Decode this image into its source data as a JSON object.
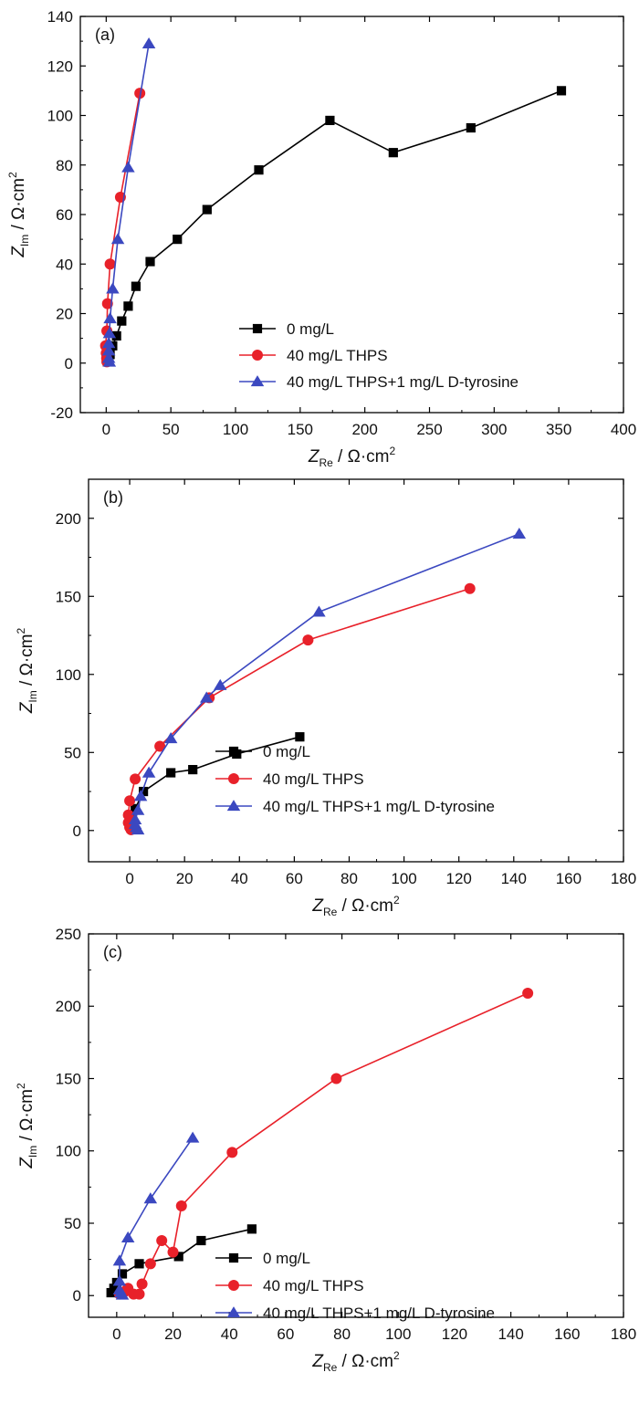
{
  "chart_data": [
    {
      "type": "line",
      "panel_label": "(a)",
      "xlabel": "Z_Re / Ω·cm²",
      "ylabel": "Z_Im / Ω·cm²",
      "xlim": [
        -20,
        400
      ],
      "ylim": [
        -20,
        140
      ],
      "xticks": [
        0,
        50,
        100,
        150,
        200,
        250,
        300,
        350,
        400
      ],
      "yticks": [
        -20,
        0,
        20,
        40,
        60,
        80,
        100,
        120,
        140
      ],
      "legend_position": "bottom-right",
      "series": [
        {
          "name": "0 mg/L",
          "color": "#000000",
          "marker": "square",
          "x": [
            1,
            2,
            3,
            5,
            8,
            12,
            17,
            23,
            34,
            55,
            78,
            118,
            173,
            222,
            282,
            352
          ],
          "y": [
            0.5,
            2,
            3.5,
            7,
            11,
            17,
            23,
            31,
            41,
            50,
            62,
            78,
            98,
            85,
            95,
            110
          ]
        },
        {
          "name": "40 mg/L THPS",
          "color": "#e8212a",
          "marker": "circle",
          "x": [
            0.5,
            0.3,
            0,
            -0.5,
            0.5,
            1,
            3,
            11,
            26
          ],
          "y": [
            0.5,
            2,
            4,
            7,
            13,
            24,
            40,
            67,
            109
          ]
        },
        {
          "name": "40 mg/L THPS+1 mg/L D-tyrosine",
          "color": "#3b48c0",
          "marker": "triangle",
          "x": [
            2.5,
            2,
            2,
            2,
            2.5,
            3,
            5,
            9,
            17,
            33
          ],
          "y": [
            0.5,
            2,
            5,
            8,
            12,
            18,
            30,
            50,
            79,
            129
          ]
        }
      ]
    },
    {
      "type": "line",
      "panel_label": "(b)",
      "xlabel": "Z_Re / Ω·cm²",
      "ylabel": "Z_Im / Ω·cm²",
      "xlim": [
        -15,
        180
      ],
      "ylim": [
        -20,
        225
      ],
      "xticks": [
        0,
        20,
        40,
        60,
        80,
        100,
        120,
        140,
        160,
        180
      ],
      "yticks": [
        0,
        50,
        100,
        150,
        200
      ],
      "legend_position": "bottom-right",
      "series": [
        {
          "name": "0 mg/L",
          "color": "#000000",
          "marker": "square",
          "x": [
            0.5,
            1,
            2,
            5,
            15,
            23,
            39,
            62
          ],
          "y": [
            3,
            8,
            14,
            25,
            37,
            39,
            49,
            60
          ]
        },
        {
          "name": "40 mg/L THPS",
          "color": "#e8212a",
          "marker": "circle",
          "x": [
            0.5,
            0,
            -0.5,
            -0.5,
            0,
            2,
            11,
            29,
            65,
            124
          ],
          "y": [
            0.5,
            2,
            5,
            10,
            19,
            33,
            54,
            85,
            122,
            155
          ]
        },
        {
          "name": "40 mg/L THPS+1 mg/L D-tyrosine",
          "color": "#3b48c0",
          "marker": "triangle",
          "x": [
            3,
            2.5,
            2,
            2,
            3,
            4,
            7,
            15,
            28,
            33,
            69,
            142
          ],
          "y": [
            0.5,
            2,
            4,
            7,
            13,
            22,
            37,
            59,
            85,
            93,
            140,
            190
          ]
        }
      ]
    },
    {
      "type": "line",
      "panel_label": "(c)",
      "xlabel": "Z_Re / Ω·cm²",
      "ylabel": "Z_Im / Ω·cm²",
      "xlim": [
        -10,
        180
      ],
      "ylim": [
        -15,
        250
      ],
      "xticks": [
        0,
        20,
        40,
        60,
        80,
        100,
        120,
        140,
        160,
        180
      ],
      "yticks": [
        0,
        50,
        100,
        150,
        200,
        250
      ],
      "legend_position": "bottom-right",
      "series": [
        {
          "name": "0 mg/L",
          "color": "#000000",
          "marker": "square",
          "x": [
            -2,
            -1,
            0,
            2,
            8,
            22,
            30,
            48
          ],
          "y": [
            2,
            5,
            9,
            15,
            22,
            27,
            38,
            46
          ]
        },
        {
          "name": "40 mg/L THPS",
          "color": "#e8212a",
          "marker": "circle",
          "x": [
            1,
            3,
            4,
            6,
            8,
            9,
            12,
            16,
            20,
            23,
            41,
            78,
            146
          ],
          "y": [
            1,
            3,
            5,
            1,
            1,
            8,
            22,
            38,
            30,
            62,
            99,
            150,
            209
          ]
        },
        {
          "name": "40 mg/L THPS+1 mg/L D-tyrosine",
          "color": "#3b48c0",
          "marker": "triangle",
          "x": [
            2,
            1.5,
            1,
            1,
            1,
            4,
            12,
            27
          ],
          "y": [
            0.5,
            2,
            4,
            10,
            24,
            40,
            67,
            109
          ]
        }
      ]
    }
  ]
}
